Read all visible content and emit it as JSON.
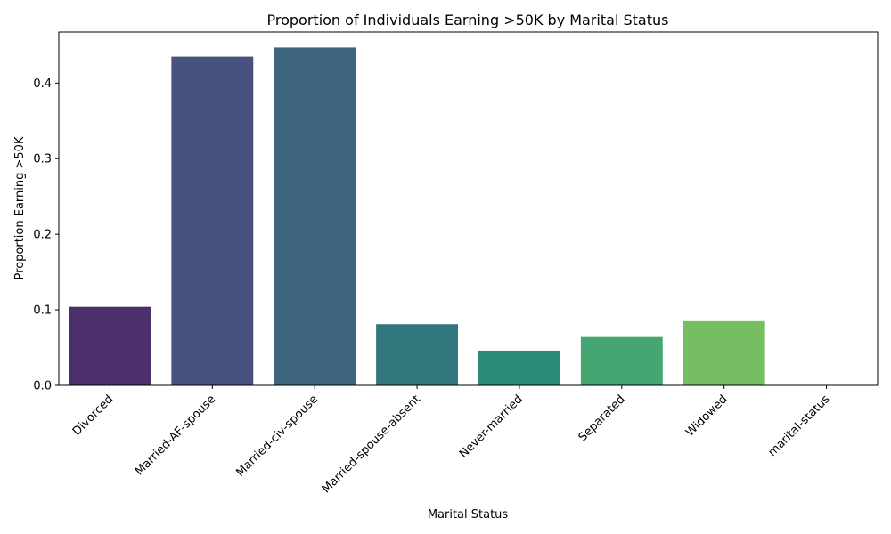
{
  "chart_data": {
    "type": "bar",
    "title": "Proportion of Individuals Earning >50K by Marital Status",
    "xlabel": "Marital Status",
    "ylabel": "Proportion Earning >50K",
    "categories": [
      "Divorced",
      "Married-AF-spouse",
      "Married-civ-spouse",
      "Married-spouse-absent",
      "Never-married",
      "Separated",
      "Widowed",
      "marital-status"
    ],
    "values": [
      0.104,
      0.435,
      0.447,
      0.081,
      0.046,
      0.064,
      0.085,
      0.0
    ],
    "colors": [
      "#4b306b",
      "#48527f",
      "#3e6681",
      "#32777e",
      "#2a8b7b",
      "#45a672",
      "#75bf62",
      "#b8d24a"
    ],
    "ylim": [
      0,
      0.4675
    ],
    "yticks": [
      0.0,
      0.1,
      0.2,
      0.3,
      0.4
    ],
    "ytick_labels": [
      "0.0",
      "0.1",
      "0.2",
      "0.3",
      "0.4"
    ],
    "grid": false,
    "legend": "none"
  }
}
